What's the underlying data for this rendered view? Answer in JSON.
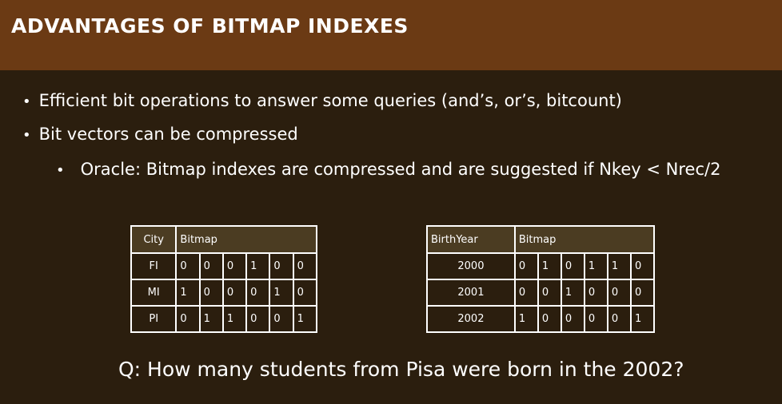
{
  "title": "ADVANTAGES OF BITMAP INDEXES",
  "bullets": [
    "Efficient bit operations to answer some queries (and’s, or’s, bitcount)",
    "Bit vectors can be compressed"
  ],
  "sub_bullets": [
    "Oracle: Bitmap indexes are compressed and are suggested if Nkey < Nrec/2"
  ],
  "bullet_glyph": "•",
  "city_table": {
    "headers": [
      "City",
      "Bitmap"
    ],
    "rows": [
      {
        "key": "FI",
        "bits": [
          "0",
          "0",
          "0",
          "1",
          "0",
          "0"
        ]
      },
      {
        "key": "MI",
        "bits": [
          "1",
          "0",
          "0",
          "0",
          "1",
          "0"
        ]
      },
      {
        "key": "PI",
        "bits": [
          "0",
          "1",
          "1",
          "0",
          "0",
          "1"
        ]
      }
    ]
  },
  "year_table": {
    "headers": [
      "BirthYear",
      "Bitmap"
    ],
    "rows": [
      {
        "key": "2000",
        "bits": [
          "0",
          "1",
          "0",
          "1",
          "1",
          "0"
        ]
      },
      {
        "key": "2001",
        "bits": [
          "0",
          "0",
          "1",
          "0",
          "0",
          "0"
        ]
      },
      {
        "key": "2002",
        "bits": [
          "1",
          "0",
          "0",
          "0",
          "0",
          "1"
        ]
      }
    ]
  },
  "question": "Q: How many students from Pisa were born in the 2002?",
  "colors": {
    "background": "#2b1e0e",
    "title_bar": "#6b3a14",
    "table_header": "#4b3c22",
    "text": "#ffffff"
  }
}
